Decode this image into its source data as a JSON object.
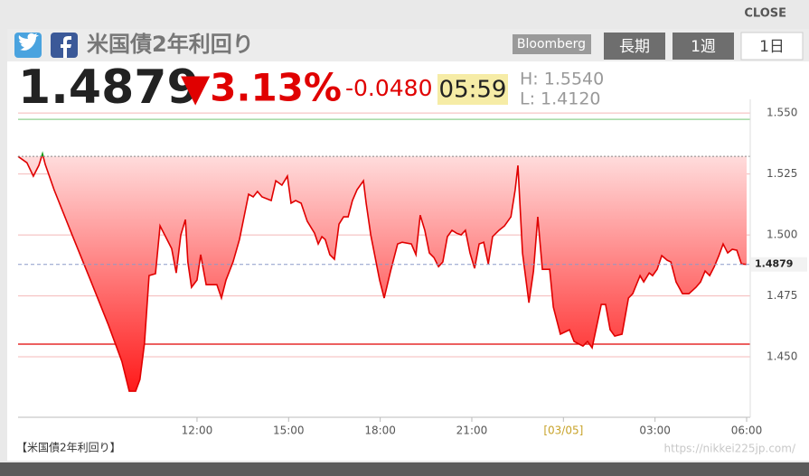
{
  "header": {
    "close": "CLOSE",
    "title": "米国債2年利回り",
    "source": "Bloomberg",
    "tabs": [
      "長期",
      "1週",
      "1日"
    ],
    "active_tab": 2
  },
  "quote": {
    "change_pct": "▼3.13%",
    "change": "-0.0480",
    "time": "05:59",
    "high": "H: 1.5540",
    "low": "L: 1.4120"
  },
  "chart_data": {
    "type": "line",
    "caption": "【米国債2年利回り】",
    "watermark": "https://nikkei225jp.com/",
    "x": [
      6.14,
      6.43,
      6.64,
      6.82,
      6.94,
      7.03,
      7.32,
      7.91,
      8.51,
      9.1,
      9.54,
      9.78,
      9.99,
      10.13,
      10.28,
      10.43,
      10.64,
      10.79,
      11.02,
      11.17,
      11.32,
      11.47,
      11.62,
      11.7,
      11.82,
      12.0,
      12.12,
      12.3,
      12.65,
      12.8,
      12.95,
      13.18,
      13.39,
      13.54,
      13.69,
      13.84,
      13.98,
      14.13,
      14.43,
      14.58,
      14.78,
      14.96,
      15.08,
      15.23,
      15.41,
      15.61,
      15.85,
      15.97,
      16.09,
      16.2,
      16.35,
      16.5,
      16.65,
      16.8,
      16.95,
      17.09,
      17.24,
      17.45,
      17.54,
      17.69,
      17.98,
      18.13,
      18.34,
      18.57,
      18.72,
      19.02,
      19.17,
      19.31,
      19.46,
      19.61,
      19.76,
      19.91,
      20.05,
      20.2,
      20.35,
      20.5,
      20.65,
      20.79,
      20.94,
      21.09,
      21.24,
      21.39,
      21.54,
      21.68,
      21.89,
      22.07,
      22.28,
      22.42,
      22.51,
      22.66,
      22.87,
      23.02,
      23.16,
      23.31,
      23.55,
      23.67,
      23.9,
      24.2,
      24.35,
      24.64,
      24.79,
      24.94,
      25.24,
      25.38,
      25.53,
      25.68,
      25.92,
      26.13,
      26.27,
      26.51,
      26.63,
      26.81,
      26.92,
      27.07,
      27.22,
      27.4,
      27.52,
      27.69,
      27.9,
      28.11,
      28.34,
      28.49,
      28.64,
      28.79,
      28.94,
      29.09,
      29.23,
      29.38,
      29.53,
      29.68,
      29.83,
      30.0
    ],
    "values": [
      1.5322,
      1.5296,
      1.5241,
      1.5285,
      1.5333,
      1.5289,
      1.5185,
      1.5,
      1.4815,
      1.463,
      1.4481,
      1.4359,
      1.4359,
      1.4407,
      1.4556,
      1.4833,
      1.4841,
      1.5037,
      1.4981,
      1.4944,
      1.4844,
      1.5,
      1.5063,
      1.4889,
      1.4785,
      1.4815,
      1.4919,
      1.4796,
      1.4796,
      1.4741,
      1.4815,
      1.4889,
      1.4981,
      1.5074,
      1.5167,
      1.5156,
      1.5178,
      1.5156,
      1.5141,
      1.5222,
      1.5204,
      1.5241,
      1.513,
      1.5141,
      1.513,
      1.5056,
      1.5007,
      1.4963,
      1.4993,
      1.4981,
      1.4919,
      1.49,
      1.5044,
      1.5074,
      1.5074,
      1.5141,
      1.5185,
      1.5222,
      1.513,
      1.5,
      1.4815,
      1.4741,
      1.4852,
      1.4963,
      1.497,
      1.4963,
      1.4919,
      1.5081,
      1.5019,
      1.4926,
      1.4907,
      1.487,
      1.4889,
      1.4993,
      1.5019,
      1.5007,
      1.5,
      1.5019,
      1.4926,
      1.4863,
      1.4963,
      1.497,
      1.4881,
      1.4993,
      1.5019,
      1.5037,
      1.5074,
      1.5185,
      1.5285,
      1.4926,
      1.4722,
      1.4852,
      1.5074,
      1.4859,
      1.4859,
      1.4704,
      1.4593,
      1.4611,
      1.4563,
      1.4544,
      1.4563,
      1.4537,
      1.4715,
      1.4715,
      1.4611,
      1.4585,
      1.4593,
      1.4741,
      1.4759,
      1.4833,
      1.4807,
      1.4844,
      1.4833,
      1.4859,
      1.4915,
      1.4896,
      1.4889,
      1.4807,
      1.4759,
      1.4759,
      1.4785,
      1.4807,
      1.4852,
      1.4833,
      1.487,
      1.4915,
      1.4963,
      1.4926,
      1.4941,
      1.4937,
      1.4881,
      1.4879
    ],
    "color": "#e00000",
    "up_color": "#1a9a1a",
    "baseline": 1.5322,
    "current": 1.4879,
    "reference_lines": [
      {
        "value": 1.5474,
        "color": "#8fd08f"
      },
      {
        "value": 1.4552,
        "color": "#e00000"
      }
    ],
    "xlim": [
      6.14,
      30
    ],
    "xticks": [
      {
        "value": 12,
        "label": "12:00"
      },
      {
        "value": 15,
        "label": "15:00"
      },
      {
        "value": 18,
        "label": "18:00"
      },
      {
        "value": 21,
        "label": "21:00"
      },
      {
        "value": 24,
        "label": "[03/05]"
      },
      {
        "value": 27,
        "label": "03:00"
      },
      {
        "value": 30,
        "label": "06:00"
      }
    ],
    "xtick_highlight": {
      "index": 4,
      "color": "#c8a32a"
    },
    "ylim": [
      1.4252,
      1.5556
    ],
    "yticks": [
      {
        "value": 1.55,
        "label": "1.550"
      },
      1.525,
      {
        "value": 1.5,
        "label": "1.500"
      },
      1.475,
      {
        "value": 1.45,
        "label": "1.450"
      }
    ],
    "grid": true,
    "grid_color": "#f4b8b8"
  }
}
